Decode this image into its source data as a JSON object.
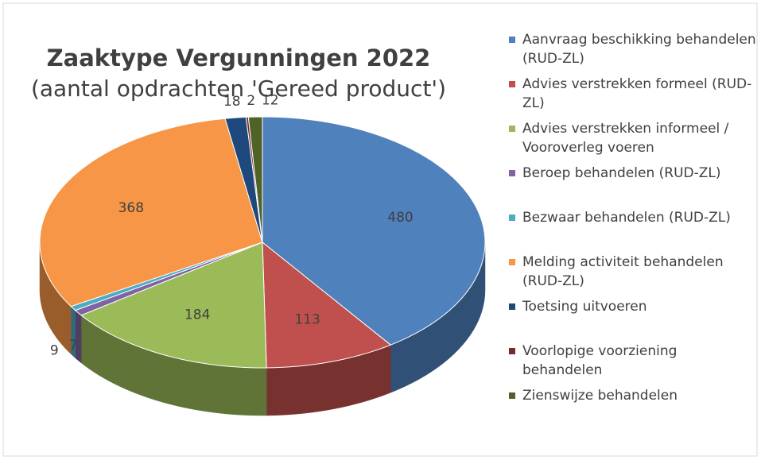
{
  "chart_data": {
    "type": "pie3d",
    "title": "Zaaktype Vergunningen 2022",
    "subtitle": "(aantal opdrachten 'Gereed product')",
    "categories": [
      "Aanvraag beschikking behandelen (RUD-ZL)",
      "Advies verstrekken formeel (RUD-ZL)",
      "Advies verstrekken informeel / Vooroverleg voeren",
      "Beroep behandelen (RUD-ZL)",
      "Bezwaar behandelen (RUD-ZL)",
      "Melding activiteit behandelen (RUD-ZL)",
      "Toetsing uitvoeren",
      "Voorlopige voorziening behandelen",
      "Zienswijze behandelen"
    ],
    "values": [
      480,
      113,
      184,
      9,
      7,
      368,
      18,
      2,
      12
    ],
    "colors": [
      "#4f81bd",
      "#c0504d",
      "#9bbb59",
      "#8064a2",
      "#4bacc6",
      "#f79646",
      "#1f497d",
      "#772c2a",
      "#4f6228"
    ],
    "legend": "right"
  }
}
